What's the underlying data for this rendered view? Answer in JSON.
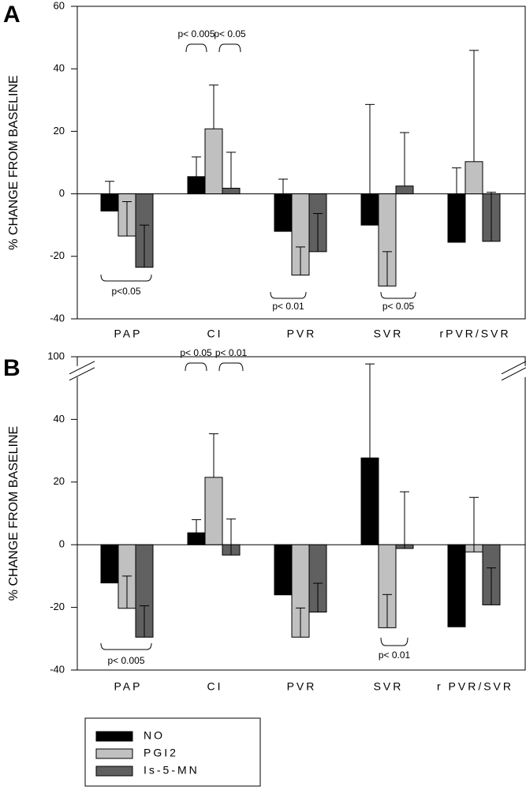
{
  "chart_data": [
    {
      "type": "bar",
      "label": "A",
      "ylabel": "% CHANGE FROM BASELINE",
      "categories": [
        "PAP",
        "CI",
        "PVR",
        "SVR",
        "rPVR/SVR"
      ],
      "series": [
        {
          "name": "NO",
          "color": "#000000",
          "values": [
            -5.5,
            5.5,
            -12,
            -10,
            -15.5
          ],
          "errors": [
            9.5,
            6.3,
            16.7,
            38.6,
            23.8
          ]
        },
        {
          "name": "PGI2",
          "color": "#c0c0c0",
          "values": [
            -13.5,
            20.8,
            -26,
            -29.5,
            10.3
          ],
          "errors": [
            11,
            14,
            9,
            11,
            35.6
          ]
        },
        {
          "name": "Is-5-MN",
          "color": "#606060",
          "values": [
            -23.5,
            1.8,
            -18.5,
            2.5,
            -15.2
          ],
          "errors": [
            13.5,
            11.5,
            12.2,
            17.1,
            15.7
          ]
        }
      ],
      "ylim": [
        -40,
        60
      ],
      "yticks": [
        -40,
        -20,
        0,
        20,
        40,
        60
      ],
      "annotations": [
        "p<0.05",
        "p< 0.005",
        "p< 0.05",
        "p< 0.01",
        "p< 0.05"
      ]
    },
    {
      "type": "bar",
      "label": "B",
      "ylabel": "% CHANGE FROM BASELINE",
      "categories": [
        "PAP",
        "CI",
        "PVR",
        "SVR",
        "r PVR/SVR"
      ],
      "series": [
        {
          "name": "NO",
          "color": "#000000",
          "values": [
            -12.2,
            3.8,
            -16,
            27.7,
            -26.2
          ],
          "errors": [
            null,
            4.2,
            null,
            70,
            null
          ]
        },
        {
          "name": "PGI2",
          "color": "#c0c0c0",
          "values": [
            -20.3,
            21.5,
            -29.5,
            -26.5,
            -2.3
          ],
          "errors": [
            10.3,
            13.9,
            9.3,
            10.6,
            17.4
          ]
        },
        {
          "name": "Is-5-MN",
          "color": "#606060",
          "values": [
            -29.5,
            -3.3,
            -21.5,
            -1.2,
            -19.2
          ],
          "errors": [
            10,
            11.5,
            9.2,
            18.1,
            11.8
          ]
        }
      ],
      "ylim": [
        -40,
        100
      ],
      "ybreak": [
        55,
        95
      ],
      "yticks": [
        -40,
        -20,
        0,
        20,
        40,
        100
      ],
      "annotations": [
        "p< 0.005",
        "p< 0.05",
        "p< 0.01",
        "p< 0.01"
      ]
    }
  ]
}
